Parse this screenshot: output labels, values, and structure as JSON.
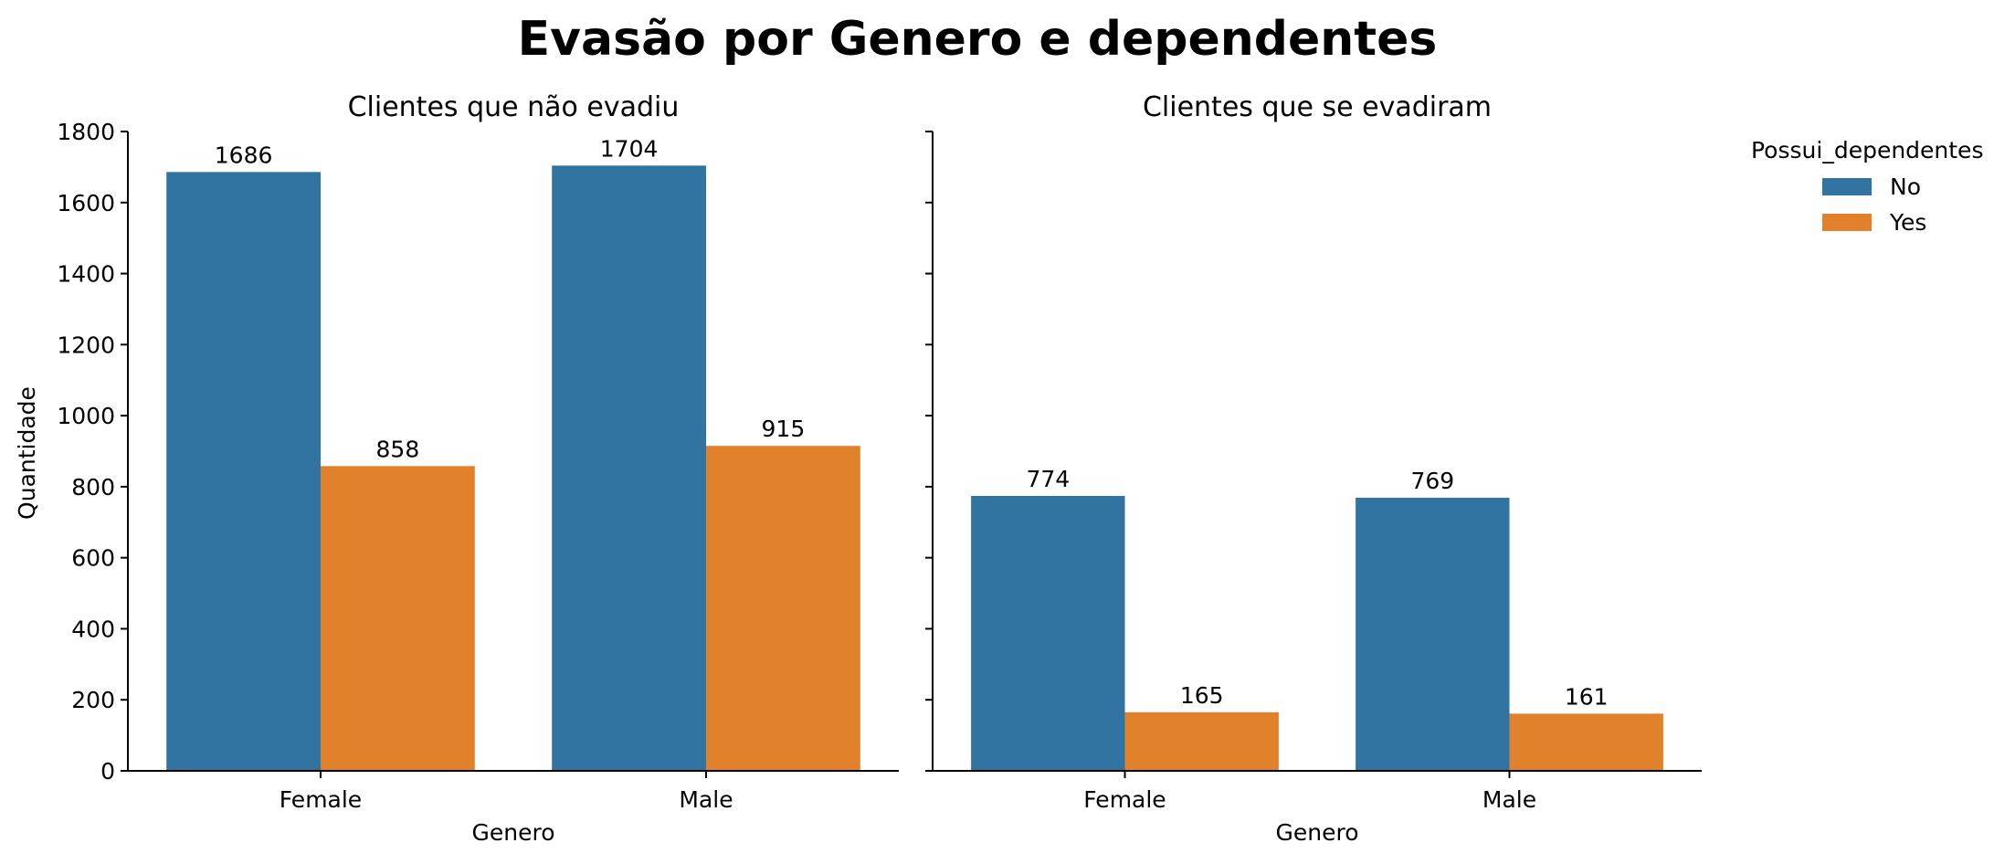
{
  "chart_data": {
    "type": "bar",
    "title": "Evasão por Genero e dependentes",
    "ylabel": "Quantidade",
    "ylim": [
      0,
      1800
    ],
    "yticks": [
      "0",
      "200",
      "400",
      "600",
      "800",
      "1000",
      "1200",
      "1400",
      "1600",
      "1800"
    ],
    "shared_y": true,
    "grid": false,
    "legend": {
      "title": "Possui_dependentes",
      "placement": "right-outside-top",
      "entries": [
        "No",
        "Yes"
      ]
    },
    "series_colors": [
      "#3274a1",
      "#e1812c"
    ],
    "panels": [
      {
        "title": "Clientes que não evadiu",
        "xlabel": "Genero",
        "categories": [
          "Female",
          "Male"
        ],
        "series": [
          {
            "name": "No",
            "values": [
              1686,
              1704
            ],
            "labels": [
              "1686",
              "1704"
            ]
          },
          {
            "name": "Yes",
            "values": [
              858,
              915
            ],
            "labels": [
              "858",
              "915"
            ]
          }
        ]
      },
      {
        "title": "Clientes que se evadiram",
        "xlabel": "Genero",
        "categories": [
          "Female",
          "Male"
        ],
        "series": [
          {
            "name": "No",
            "values": [
              774,
              769
            ],
            "labels": [
              "774",
              "769"
            ]
          },
          {
            "name": "Yes",
            "values": [
              165,
              161
            ],
            "labels": [
              "165",
              "161"
            ]
          }
        ]
      }
    ]
  }
}
